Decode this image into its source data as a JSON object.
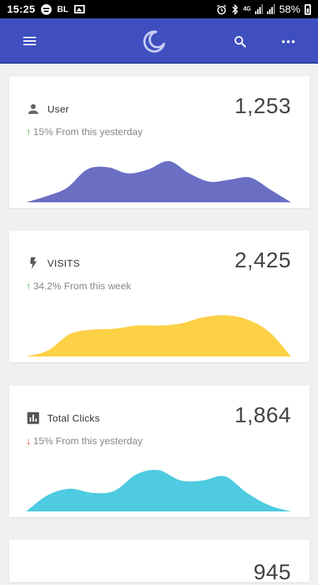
{
  "status_bar": {
    "time": "15:25",
    "carrier": "BL",
    "network": "4G",
    "battery": "58%",
    "icons": [
      "spotify-icon",
      "image-icon",
      "alarm-icon",
      "bluetooth-icon",
      "signal-icon",
      "battery-icon"
    ]
  },
  "app_bar": {
    "icons": [
      "menu-icon",
      "app-logo",
      "search-icon",
      "more-icon"
    ],
    "accent": "#3f4fbf"
  },
  "cards": [
    {
      "title": "User",
      "icon": "person-icon",
      "value": "1,253",
      "change_arrow": "↑",
      "change_text": "15% From this yesterday",
      "trend": "up",
      "color": "#6a6fc4",
      "series": [
        0,
        6,
        14,
        32,
        34,
        28,
        32,
        40,
        28,
        20,
        22,
        24,
        12,
        0
      ]
    },
    {
      "title": "VISITS",
      "icon": "bolt-icon",
      "value": "2,425",
      "change_arrow": "↑",
      "change_text": "34.2% From this week",
      "trend": "up",
      "color": "#fdd146",
      "series": [
        0,
        6,
        22,
        26,
        27,
        30,
        30,
        32,
        38,
        40,
        36,
        24,
        0
      ]
    },
    {
      "title": "Total Clicks",
      "icon": "bar-chart-icon",
      "value": "1,864",
      "change_arrow": "↓",
      "change_text": "15% From this yesterday",
      "trend": "down",
      "color": "#4ecbe0",
      "series": [
        0,
        16,
        22,
        18,
        20,
        36,
        40,
        30,
        30,
        34,
        18,
        6,
        0
      ]
    },
    {
      "title": "",
      "icon": "",
      "value": "945",
      "change_arrow": "",
      "change_text": "",
      "trend": "",
      "color": "#6a6fc4",
      "series": []
    }
  ],
  "colors": {
    "up": "#4caf50",
    "down": "#e53935"
  }
}
